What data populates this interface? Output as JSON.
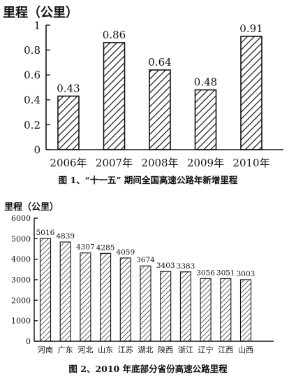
{
  "chart_data": [
    {
      "type": "bar",
      "ylabel": "里程（公里）",
      "caption": "图 1、“十一五” 期间全国高速公路年新增里程",
      "categories": [
        "2006年",
        "2007年",
        "2008年",
        "2009年",
        "2010年"
      ],
      "values": [
        0.43,
        0.86,
        0.64,
        0.48,
        0.91
      ],
      "value_labels": [
        "0.43",
        "0.86",
        "0.64",
        "0.48",
        "0.91"
      ],
      "ylim": [
        0,
        1
      ],
      "yticks": [
        0,
        0.2,
        0.4,
        0.6,
        0.8,
        1
      ],
      "ytick_labels": [
        "0",
        "0.2",
        "0.4",
        "0.6",
        "0.8",
        "1"
      ],
      "bar_fill": "diagonal-hatch",
      "grid": false,
      "colors": {
        "bar_outline": "#111111",
        "hatch": "#111111",
        "axis": "#111111"
      }
    },
    {
      "type": "bar",
      "ylabel": "里程（公里）",
      "caption": "图 2、2010 年底部分省份高速公路里程",
      "categories": [
        "河南",
        "广东",
        "河北",
        "山东",
        "江苏",
        "湖北",
        "陕西",
        "浙江",
        "辽宁",
        "江西",
        "山西"
      ],
      "values": [
        5016,
        4839,
        4307,
        4285,
        4059,
        3674,
        3403,
        3383,
        3056,
        3051,
        3003
      ],
      "value_labels": [
        "5016",
        "4839",
        "4307",
        "4285",
        "4059",
        "3674",
        "3403",
        "3383",
        "3056",
        "3051",
        "3003"
      ],
      "ylim": [
        0,
        6000
      ],
      "yticks": [
        0,
        1000,
        2000,
        3000,
        4000,
        5000,
        6000
      ],
      "ytick_labels": [
        "0",
        "1000",
        "2000",
        "3000",
        "4000",
        "5000",
        "6000"
      ],
      "bar_fill": "diagonal-hatch",
      "grid": false,
      "colors": {
        "bar_outline": "#111111",
        "hatch": "#111111",
        "axis": "#111111"
      }
    }
  ]
}
